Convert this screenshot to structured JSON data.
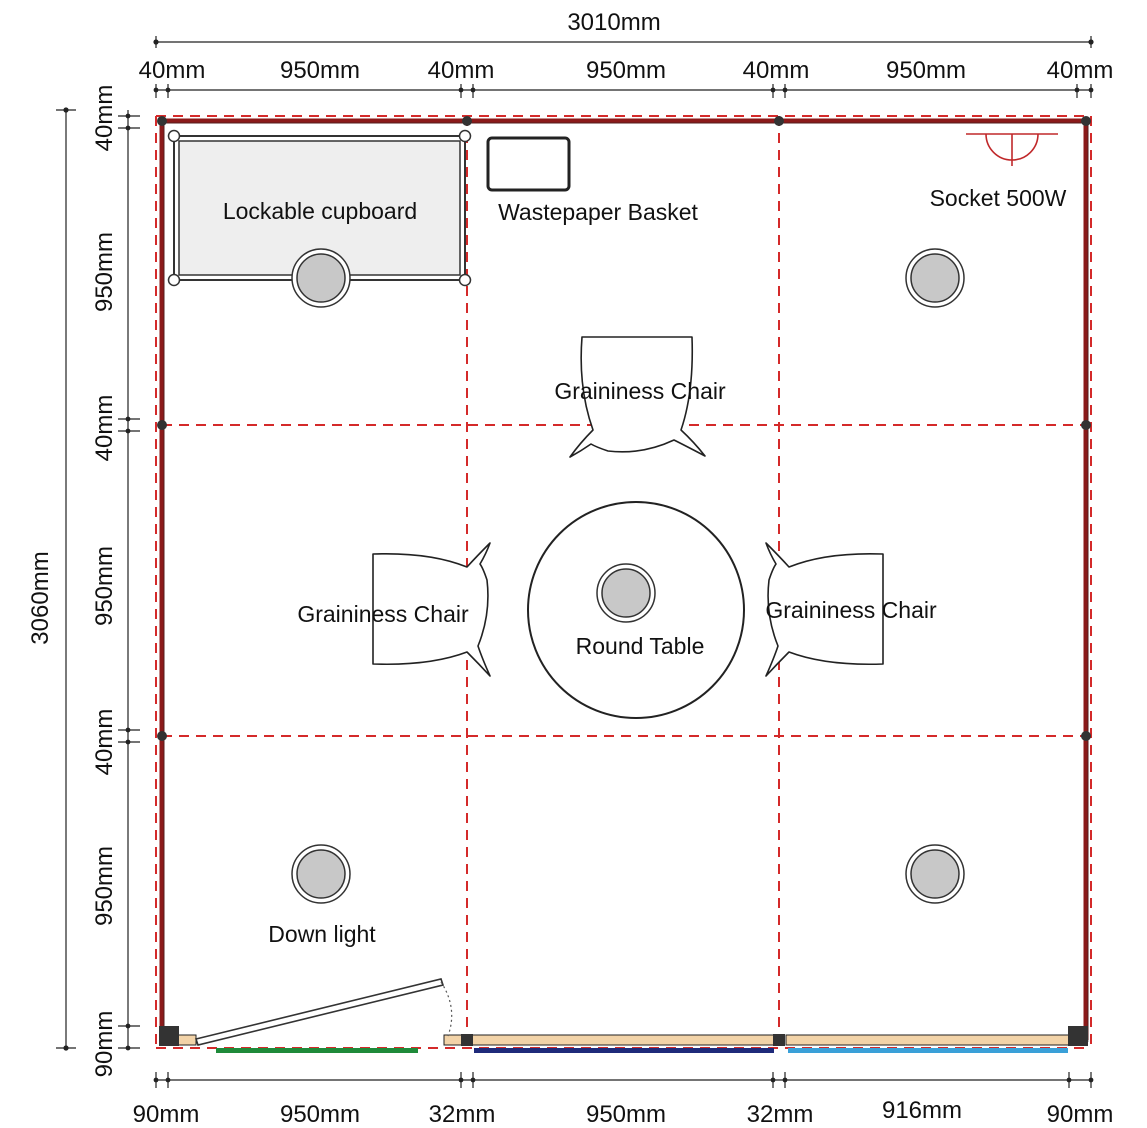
{
  "colors": {
    "wall": "#8b1a1a",
    "grid": "#d42a2a",
    "line": "#222222",
    "cupboard_fill": "#eeeeee",
    "light_fill": "#c8c8c8",
    "floor_strip": "#f2d3a8",
    "green_strip": "#1f8a3a",
    "navy_strip": "#1f2a7a",
    "blue_strip": "#3aa0d8"
  },
  "dimensions": {
    "top_total": "3010mm",
    "top_segments": [
      "40mm",
      "950mm",
      "40mm",
      "950mm",
      "40mm",
      "950mm",
      "40mm"
    ],
    "left_total": "3060mm",
    "left_segments": [
      "40mm",
      "950mm",
      "40mm",
      "950mm",
      "40mm",
      "950mm",
      "90mm"
    ],
    "bottom_segments": [
      "90mm",
      "950mm",
      "32mm",
      "950mm",
      "32mm",
      "916mm",
      "90mm"
    ]
  },
  "labels": {
    "cupboard": "Lockable cupboard",
    "basket": "Wastepaper Basket",
    "socket": "Socket 500W",
    "chair_top": "Graininess Chair",
    "chair_left": "Graininess Chair",
    "chair_right": "Graininess Chair",
    "table": "Round Table",
    "down_light": "Down light"
  },
  "icons": {
    "socket": "socket-icon",
    "down_light": "down-light-icon",
    "door": "door-icon"
  }
}
